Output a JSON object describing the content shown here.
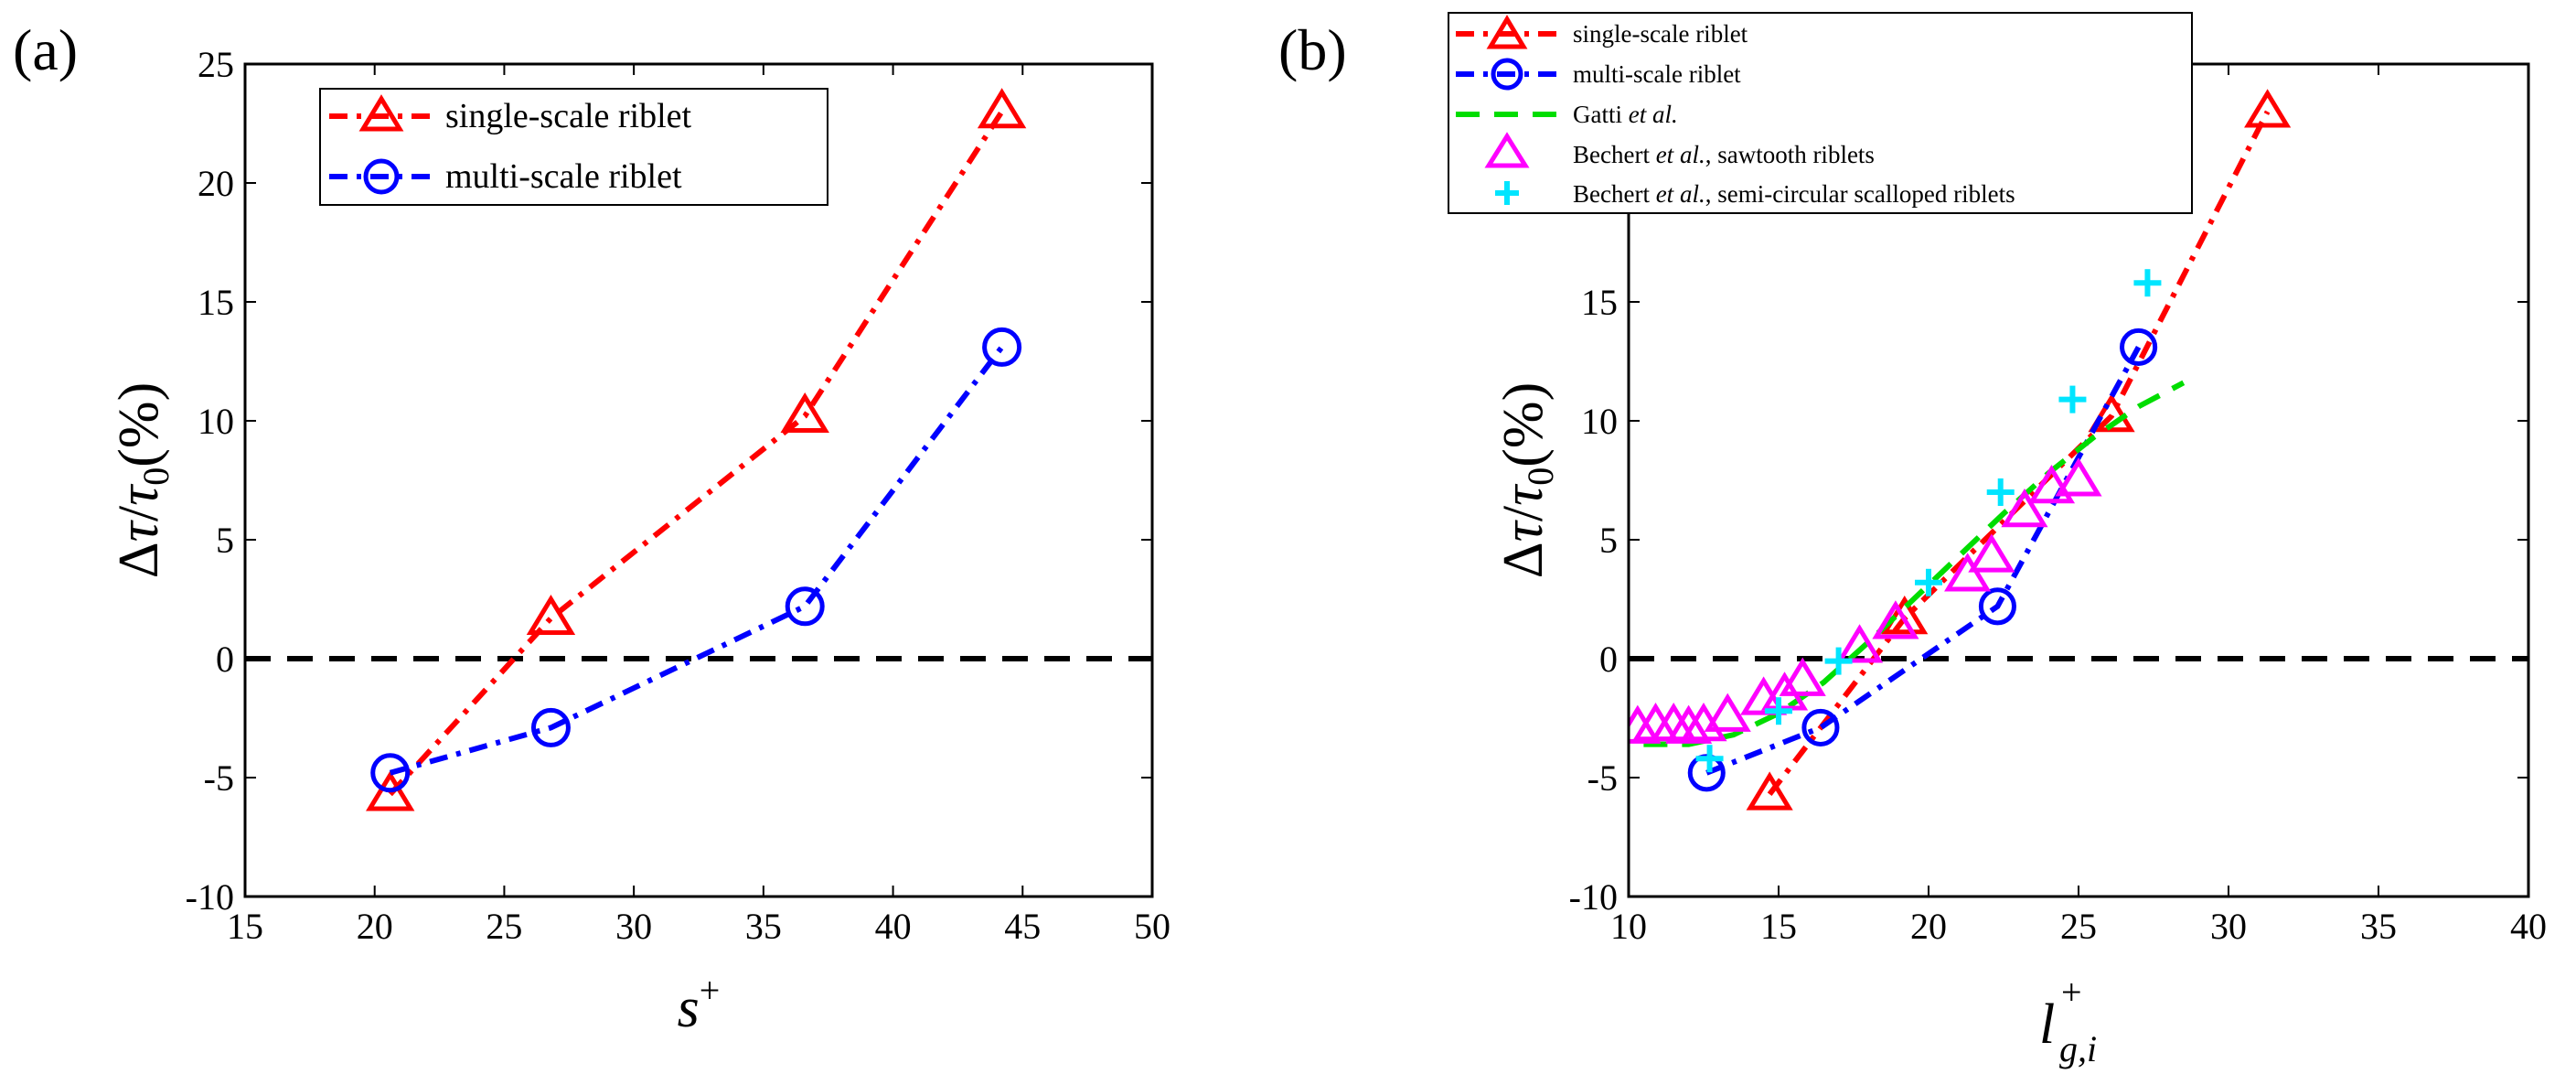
{
  "chart_data": [
    {
      "type": "line",
      "panel_label": "(a)",
      "xlabel_base": "s",
      "xlabel_sup": "+",
      "ylabel": {
        "delta": "Δ",
        "tau": "τ",
        "slash": "/",
        "tau0": "τ",
        "sub0": "0",
        "pct": "(%)"
      },
      "xlim": [
        15,
        50
      ],
      "ylim": [
        -10,
        25
      ],
      "x_ticks": [
        "15",
        "20",
        "25",
        "30",
        "35",
        "40",
        "45",
        "50"
      ],
      "y_ticks": [
        "-10",
        "-5",
        "0",
        "5",
        "10",
        "15",
        "20",
        "25"
      ],
      "reference_line": {
        "y": 0,
        "style": "dashed",
        "color": "#000000"
      },
      "legend_position": "top-center",
      "series": [
        {
          "name": "single-scale riblet",
          "color": "#ff0000",
          "marker": "triangle",
          "line": "dash-dot",
          "x": [
            20.6,
            26.8,
            36.6,
            44.2
          ],
          "y": [
            -5.7,
            1.7,
            10.2,
            23.0
          ]
        },
        {
          "name": "multi-scale riblet",
          "color": "#0000ff",
          "marker": "circle",
          "line": "dash-dot",
          "x": [
            20.6,
            26.8,
            36.6,
            44.2
          ],
          "y": [
            -4.8,
            -2.9,
            2.2,
            13.1
          ]
        }
      ]
    },
    {
      "type": "line",
      "panel_label": "(b)",
      "xlabel_base": "l",
      "xlabel_sup": "+",
      "xlabel_sub": "g,i",
      "ylabel": {
        "delta": "Δ",
        "tau": "τ",
        "slash": "/",
        "tau0": "τ",
        "sub0": "0",
        "pct": "(%)"
      },
      "xlim": [
        10,
        40
      ],
      "ylim": [
        -10,
        25
      ],
      "x_ticks": [
        "10",
        "15",
        "20",
        "25",
        "30",
        "35",
        "40"
      ],
      "y_ticks": [
        "-10",
        "-5",
        "0",
        "5",
        "10",
        "15"
      ],
      "reference_line": {
        "y": 0,
        "style": "dashed",
        "color": "#000000"
      },
      "legend_position": "top-left",
      "series": [
        {
          "name": "single-scale riblet",
          "color": "#ff0000",
          "marker": "triangle",
          "line": "dash-dot",
          "x": [
            14.7,
            19.2,
            26.1,
            31.3
          ],
          "y": [
            -5.7,
            1.7,
            10.2,
            23.0
          ]
        },
        {
          "name": "multi-scale riblet",
          "color": "#0000ff",
          "marker": "circle",
          "line": "dash-dot",
          "x": [
            12.6,
            16.4,
            22.3,
            27.0
          ],
          "y": [
            -4.8,
            -2.9,
            2.2,
            13.1
          ]
        },
        {
          "name": "Gatti et al.",
          "color": "#00dd00",
          "marker": "none",
          "line": "dashed",
          "x": [
            10.5,
            12.0,
            13.5,
            15.0,
            16.5,
            18.0,
            19.5,
            21.0,
            22.5,
            24.0,
            25.5,
            27.0,
            28.5
          ],
          "y": [
            -3.6,
            -3.6,
            -3.2,
            -2.3,
            -1.0,
            0.7,
            2.5,
            4.3,
            6.1,
            7.8,
            9.3,
            10.6,
            11.6
          ]
        },
        {
          "name": "Bechert et al., sawtooth riblets",
          "color": "#ff00ff",
          "marker": "triangle",
          "line": "none",
          "x": [
            10.3,
            10.9,
            11.5,
            12.0,
            12.5,
            13.3,
            14.5,
            15.2,
            15.8,
            17.7,
            18.9,
            21.3,
            22.1,
            23.2,
            24.1,
            25.0
          ],
          "y": [
            -2.9,
            -2.8,
            -2.8,
            -2.9,
            -2.8,
            -2.4,
            -1.7,
            -1.5,
            -0.9,
            0.5,
            1.5,
            3.5,
            4.3,
            6.2,
            7.2,
            7.5
          ]
        },
        {
          "name": "Bechert et al., semi-circular scalloped riblets",
          "color": "#00e5ff",
          "marker": "plus",
          "line": "none",
          "x": [
            12.7,
            15.0,
            17.0,
            20.0,
            22.4,
            24.8,
            27.3
          ],
          "y": [
            -4.2,
            -2.2,
            -0.1,
            3.2,
            7.0,
            10.9,
            15.8
          ]
        }
      ]
    }
  ],
  "legend_a": {
    "single": "single-scale riblet",
    "multi": "multi-scale riblet"
  },
  "legend_b": {
    "single": "single-scale riblet",
    "multi": "multi-scale riblet",
    "gatti_name": "Gatti ",
    "gatti_etal": "et al.",
    "saw_name": "Bechert ",
    "saw_etal": "et al.",
    "saw_rest": ", sawtooth riblets",
    "semi_name": "Bechert ",
    "semi_etal": "et al.",
    "semi_rest": ", semi-circular scalloped riblets"
  }
}
